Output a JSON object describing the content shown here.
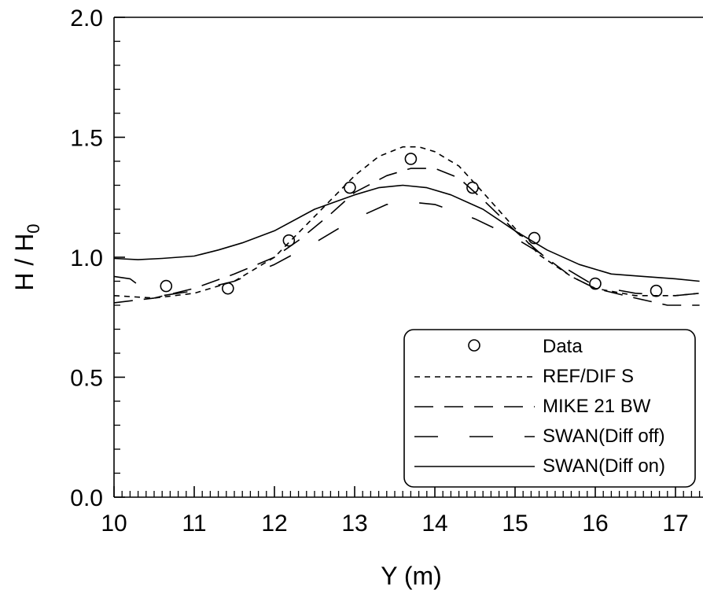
{
  "chart_data": {
    "type": "line",
    "xlabel": "Y (m)",
    "ylabel": "H / H",
    "ylabel_subscript": "0",
    "xlim": [
      10,
      17.3
    ],
    "ylim": [
      0,
      2
    ],
    "x_ticks": [
      "10",
      "11",
      "12",
      "13",
      "14",
      "15",
      "16",
      "17"
    ],
    "y_ticks": [
      "0.0",
      "0.5",
      "1.0",
      "1.5",
      "2.0"
    ],
    "grid": false,
    "legend_position": "bottom-right",
    "series": [
      {
        "name": "Data",
        "style": "markers",
        "x": [
          10.65,
          11.42,
          12.18,
          12.94,
          13.7,
          14.47,
          15.24,
          16.0,
          16.76
        ],
        "y": [
          0.88,
          0.87,
          1.07,
          1.29,
          1.41,
          1.29,
          1.08,
          0.89,
          0.86
        ]
      },
      {
        "name": "REF/DIF S",
        "style": "short-dash",
        "x": [
          10.0,
          10.5,
          11.0,
          11.5,
          12.0,
          12.5,
          13.0,
          13.3,
          13.6,
          13.8,
          14.0,
          14.3,
          14.6,
          15.0,
          15.3,
          15.7,
          16.0,
          16.5,
          17.0,
          17.3
        ],
        "y": [
          0.84,
          0.83,
          0.85,
          0.9,
          1.0,
          1.17,
          1.34,
          1.42,
          1.46,
          1.46,
          1.44,
          1.38,
          1.27,
          1.12,
          1.01,
          0.92,
          0.87,
          0.84,
          0.84,
          0.85
        ]
      },
      {
        "name": "MIKE 21 BW",
        "style": "long-dash",
        "x": [
          10.0,
          10.5,
          11.0,
          11.5,
          12.0,
          12.3,
          12.7,
          13.0,
          13.4,
          13.7,
          14.0,
          14.3,
          14.6,
          15.0,
          15.3,
          15.7,
          16.0,
          16.5,
          16.9,
          17.3
        ],
        "y": [
          0.81,
          0.83,
          0.87,
          0.93,
          1.0,
          1.07,
          1.18,
          1.27,
          1.34,
          1.37,
          1.37,
          1.33,
          1.24,
          1.11,
          1.02,
          0.92,
          0.87,
          0.83,
          0.8,
          0.8
        ]
      },
      {
        "name": "SWAN(Diff off)",
        "style": "long-gap",
        "x": [
          10.0,
          10.2,
          10.4,
          10.6,
          11.0,
          11.5,
          12.0,
          12.5,
          13.0,
          13.4,
          13.7,
          14.0,
          14.5,
          15.0,
          15.4,
          15.8,
          16.0,
          16.5,
          17.0,
          17.3
        ],
        "y": [
          0.92,
          0.91,
          0.86,
          0.84,
          0.86,
          0.9,
          0.97,
          1.06,
          1.16,
          1.22,
          1.23,
          1.22,
          1.16,
          1.08,
          1.0,
          0.92,
          0.88,
          0.85,
          0.84,
          0.85
        ]
      },
      {
        "name": "SWAN(Diff on)",
        "style": "solid",
        "x": [
          10.0,
          10.3,
          10.6,
          11.0,
          11.3,
          11.6,
          12.0,
          12.5,
          13.0,
          13.3,
          13.6,
          13.9,
          14.2,
          14.6,
          15.0,
          15.4,
          15.8,
          16.2,
          16.6,
          17.0,
          17.3
        ],
        "y": [
          0.995,
          0.99,
          0.995,
          1.005,
          1.03,
          1.06,
          1.11,
          1.2,
          1.26,
          1.29,
          1.3,
          1.29,
          1.26,
          1.2,
          1.11,
          1.03,
          0.97,
          0.93,
          0.92,
          0.91,
          0.9
        ]
      }
    ]
  }
}
